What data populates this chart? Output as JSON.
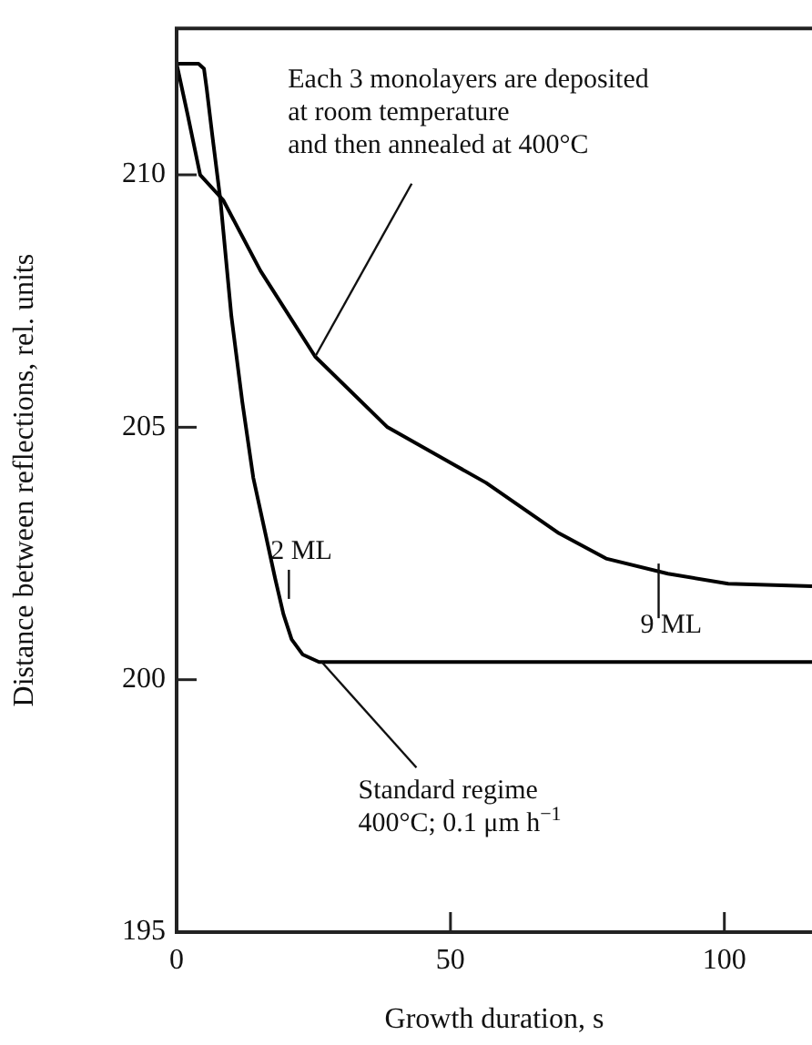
{
  "chart_data": {
    "type": "line",
    "xlabel": "Growth duration, s",
    "ylabel": "Distance between reflections, rel. units",
    "xlim": [
      0,
      116
    ],
    "xticks": [
      0,
      50,
      100
    ],
    "ylim": [
      195,
      212.9
    ],
    "yticks": [
      195,
      200,
      205,
      210
    ],
    "grid": false,
    "legend": false,
    "marker": "none",
    "line_style": "solid",
    "series": [
      {
        "color": "#000000",
        "x": [
          0,
          4,
          5,
          5.5,
          6.5,
          8,
          10,
          12,
          14,
          16,
          18,
          19.5,
          21,
          23,
          26,
          116
        ],
        "values": [
          212.2,
          212.2,
          212.1,
          211.7,
          210.8,
          209.5,
          207.2,
          205.5,
          204,
          203,
          202,
          201.3,
          200.8,
          200.5,
          200.35,
          200.35
        ]
      },
      {
        "color": "#000000",
        "x": [
          0,
          2,
          4.3,
          8.5,
          15.3,
          25.3,
          38.5,
          56.5,
          69.8,
          78.4,
          89.7,
          100.7,
          116
        ],
        "values": [
          212.2,
          211.2,
          210,
          209.5,
          208.1,
          206.4,
          205,
          203.9,
          202.9,
          202.4,
          202.1,
          201.9,
          201.85
        ]
      }
    ],
    "annotations": [
      {
        "text": "Each 3 monolayers are deposited\nat room temperature\nand then annealed at 400°C",
        "x": 25.3,
        "y": 206.4
      },
      {
        "text": "Standard regime\n400°C; 0.1 μm h$^{−1}$",
        "x": 26.5,
        "y": 200.35
      },
      {
        "text": "2 ML",
        "x": 20.5,
        "y": 201.6
      },
      {
        "text": "9 ML",
        "x": 88,
        "y": 202.3
      }
    ]
  }
}
